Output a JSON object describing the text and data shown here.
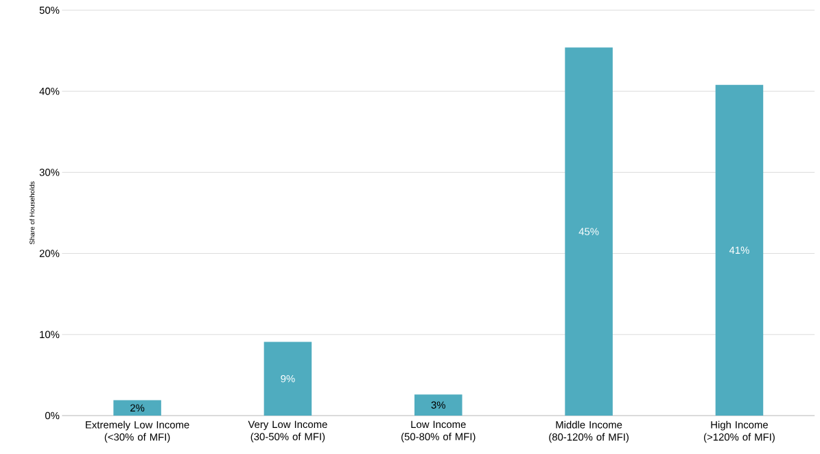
{
  "chart_data": {
    "type": "bar",
    "ylabel": "Share of Households",
    "categories": [
      "Extremely Low Income (<30% of MFI)",
      "Very Low Income (30-50% of MFI)",
      "Low Income (50-80% of MFI)",
      "Middle Income (80-120% of MFI)",
      "High Income (>120% of MFI)"
    ],
    "values": [
      1.9,
      9.1,
      2.6,
      45.4,
      40.8
    ],
    "value_labels": [
      "2%",
      "9%",
      "3%",
      "45%",
      "41%"
    ],
    "color": "#4facbf",
    "ylim": [
      0,
      50
    ],
    "yticks": [
      {
        "value": 0,
        "label": "0%"
      },
      {
        "value": 10,
        "label": "10%"
      },
      {
        "value": 20,
        "label": "20%"
      },
      {
        "value": 30,
        "label": "30%"
      },
      {
        "value": 40,
        "label": "40%"
      },
      {
        "value": 50,
        "label": "50%"
      }
    ],
    "grid": "y"
  }
}
